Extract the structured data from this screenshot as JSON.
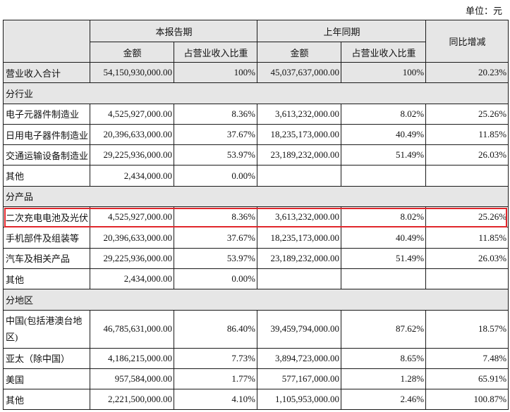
{
  "unit_label": "单位：元",
  "header": {
    "current_period": "本报告期",
    "prior_period": "上年同期",
    "yoy_change": "同比增减",
    "cur_amount": "金额",
    "cur_share": "占营业收入比重",
    "prev_amount": "金额",
    "prev_share": "占营业收入比重"
  },
  "total": {
    "label": "营业收入合计",
    "cur_amount": "54,150,930,000.00",
    "cur_share": "100%",
    "prev_amount": "45,037,637,000.00",
    "prev_share": "100%",
    "change": "20.23%"
  },
  "sections": [
    {
      "title": "分行业",
      "rows": [
        {
          "label": "电子元器件制造业",
          "cur_amount": "4,525,927,000.00",
          "cur_share": "8.36%",
          "prev_amount": "3,613,232,000.00",
          "prev_share": "8.02%",
          "change": "25.26%"
        },
        {
          "label": "日用电子器件制造业",
          "cur_amount": "20,396,633,000.00",
          "cur_share": "37.67%",
          "prev_amount": "18,235,173,000.00",
          "prev_share": "40.49%",
          "change": "11.85%"
        },
        {
          "label": "交通运输设备制造业",
          "cur_amount": "29,225,936,000.00",
          "cur_share": "53.97%",
          "prev_amount": "23,189,232,000.00",
          "prev_share": "51.49%",
          "change": "26.03%"
        },
        {
          "label": "其他",
          "cur_amount": "2,434,000.00",
          "cur_share": "0.00%"
        }
      ]
    },
    {
      "title": "分产品",
      "rows": [
        {
          "label": "二次充电电池及光伏",
          "cur_amount": "4,525,927,000.00",
          "cur_share": "8.36%",
          "prev_amount": "3,613,232,000.00",
          "prev_share": "8.02%",
          "change": "25.26%",
          "highlighted": true
        },
        {
          "label": "手机部件及组装等",
          "cur_amount": "20,396,633,000.00",
          "cur_share": "37.67%",
          "prev_amount": "18,235,173,000.00",
          "prev_share": "40.49%",
          "change": "11.85%"
        },
        {
          "label": "汽车及相关产品",
          "cur_amount": "29,225,936,000.00",
          "cur_share": "53.97%",
          "prev_amount": "23,189,232,000.00",
          "prev_share": "51.49%",
          "change": "26.03%"
        },
        {
          "label": "其他",
          "cur_amount": "2,434,000.00",
          "cur_share": "0.00%"
        }
      ]
    },
    {
      "title": "分地区",
      "rows": [
        {
          "label": "中国(包括港澳台地区)",
          "cur_amount": "46,785,631,000.00",
          "cur_share": "86.40%",
          "prev_amount": "39,459,794,000.00",
          "prev_share": "87.62%",
          "change": "18.57%"
        },
        {
          "label": "亚太（除中国）",
          "cur_amount": "4,186,215,000.00",
          "cur_share": "7.73%",
          "prev_amount": "3,894,723,000.00",
          "prev_share": "8.65%",
          "change": "7.48%"
        },
        {
          "label": "美国",
          "cur_amount": "957,584,000.00",
          "cur_share": "1.77%",
          "prev_amount": "577,167,000.00",
          "prev_share": "1.28%",
          "change": "65.91%"
        },
        {
          "label": "其他",
          "cur_amount": "2,221,500,000.00",
          "cur_share": "4.10%",
          "prev_amount": "1,105,953,000.00",
          "prev_share": "2.46%",
          "change": "100.87%"
        }
      ]
    }
  ],
  "highlight_color": "#e0262b"
}
